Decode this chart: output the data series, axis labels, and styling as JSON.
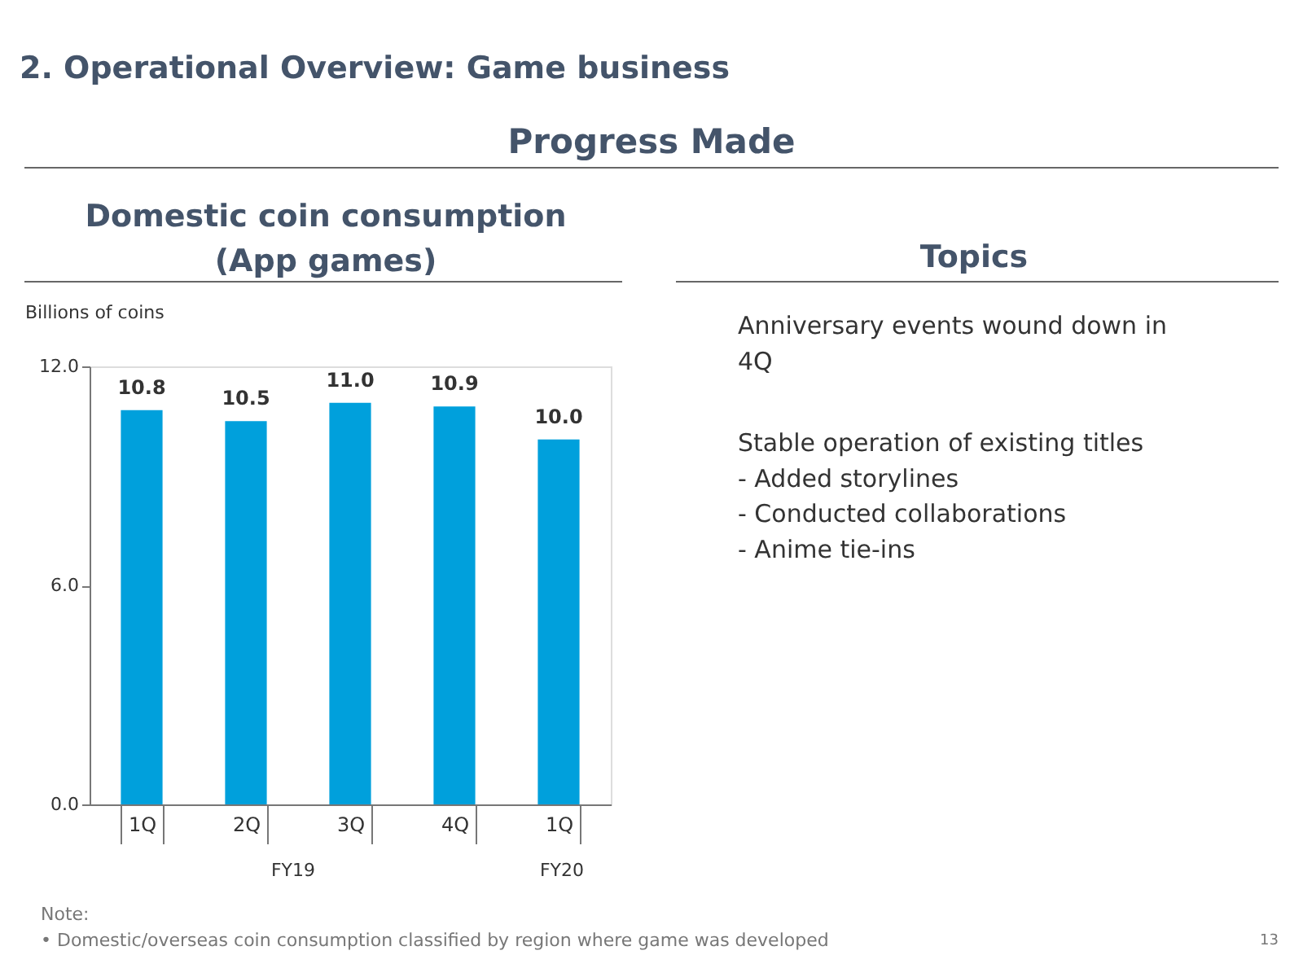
{
  "chart_data": {
    "type": "bar",
    "title": "Domestic coin consumption\n(App games)",
    "ylabel": "Billions of coins",
    "categories": [
      "1Q",
      "2Q",
      "3Q",
      "4Q",
      "1Q"
    ],
    "values": [
      10.8,
      10.5,
      11.0,
      10.9,
      10.0
    ],
    "value_labels": [
      "10.8",
      "10.5",
      "11.0",
      "10.9",
      "10.0"
    ],
    "color": "#00a0dc",
    "ylim": [
      0,
      12
    ],
    "yticks": [
      {
        "value": 0,
        "label": "0.0"
      },
      {
        "value": 6,
        "label": "6.0"
      },
      {
        "value": 12,
        "label": "12.0"
      }
    ],
    "grid": false,
    "annotations": [
      "2. Operational Overview: Game business",
      "Progress Made",
      "Topics",
      "Anniversary events wound down in\n4Q",
      "Stable operation of existing titles\n- Added storylines\n- Conducted collaborations\n- Anime tie-ins",
      "FY19",
      "FY20",
      "Note:\n• Domestic/overseas coin consumption classified by region where game was developed",
      "13"
    ]
  }
}
